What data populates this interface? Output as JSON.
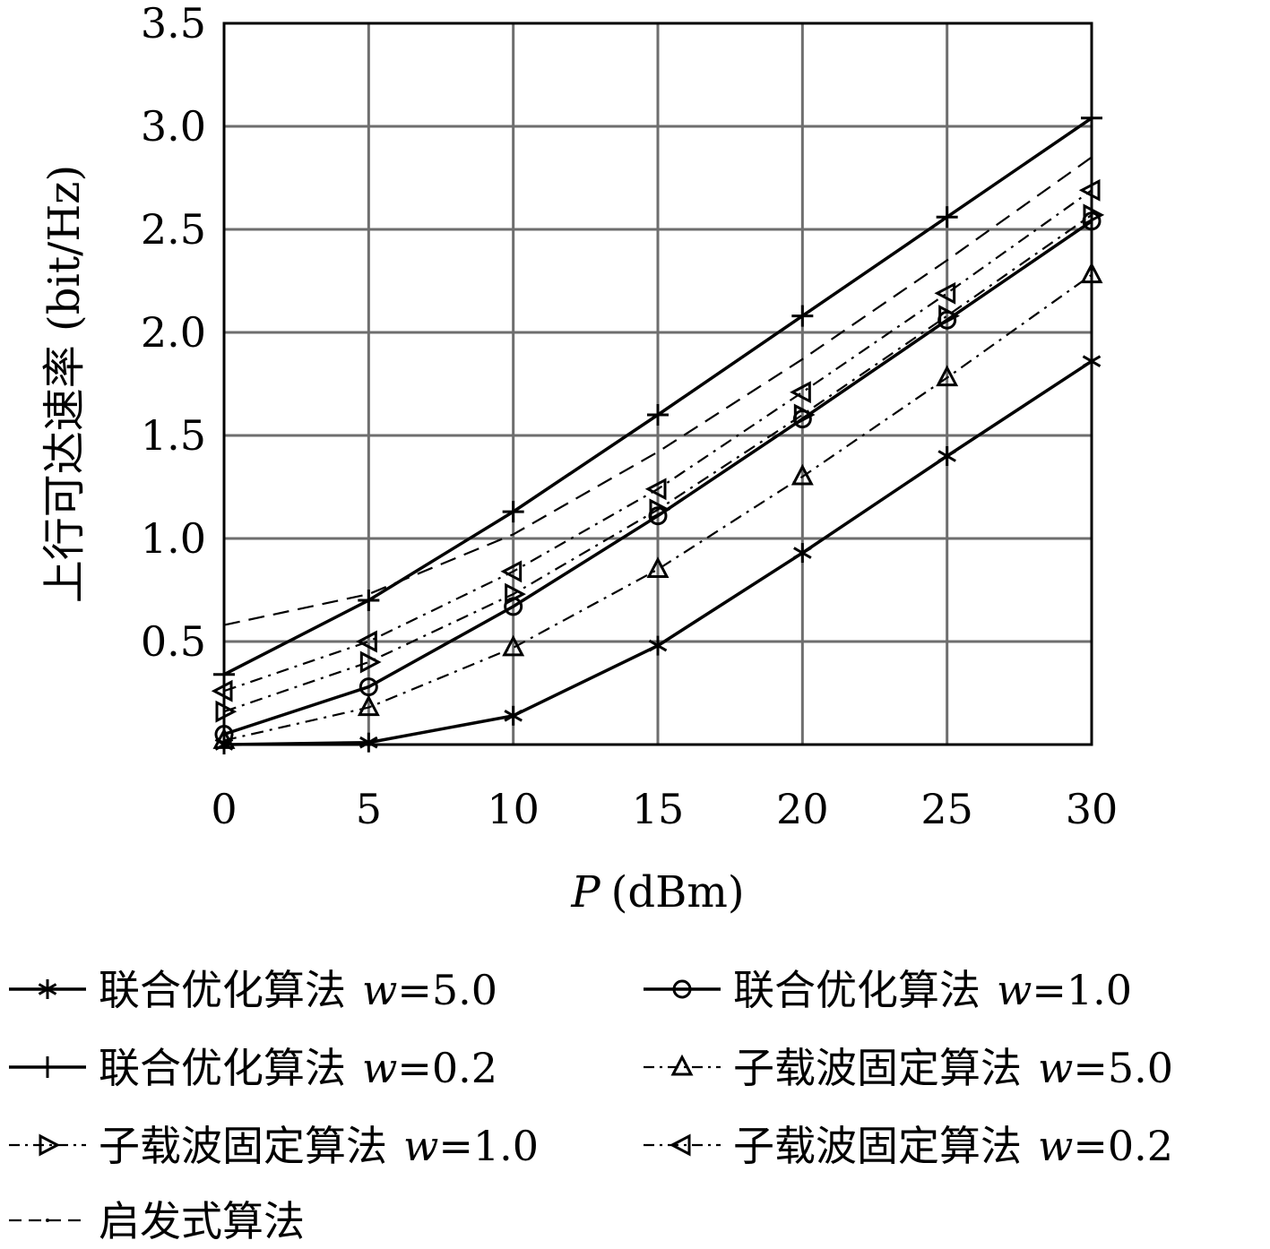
{
  "chart_data": {
    "type": "line",
    "title": "",
    "xlabel_var": "P",
    "xlabel_unit": "(dBm)",
    "ylabel": "上行可达速率 (bit/Hz)",
    "xlim": [
      0,
      30
    ],
    "ylim": [
      0,
      3.5
    ],
    "x_ticks": [
      "0",
      "5",
      "10",
      "15",
      "20",
      "25",
      "30"
    ],
    "y_ticks": [
      "0.5",
      "1.0",
      "1.5",
      "2.0",
      "2.5",
      "3.0",
      "3.5"
    ],
    "grid": true,
    "legend_position": "bottom",
    "x": [
      0,
      5,
      10,
      15,
      20,
      25,
      30
    ],
    "series": [
      {
        "name_text": "联合优化算法",
        "name_w": "w",
        "name_val": "=5.0",
        "style": "solid",
        "marker": "asterisk",
        "values": [
          0.0,
          0.01,
          0.14,
          0.48,
          0.93,
          1.4,
          1.86
        ]
      },
      {
        "name_text": "联合优化算法",
        "name_w": "w",
        "name_val": "=1.0",
        "style": "solid",
        "marker": "circle",
        "values": [
          0.05,
          0.28,
          0.67,
          1.11,
          1.58,
          2.06,
          2.54
        ]
      },
      {
        "name_text": "联合优化算法",
        "name_w": "w",
        "name_val": "=0.2",
        "style": "solid",
        "marker": "plus",
        "values": [
          0.34,
          0.7,
          1.13,
          1.6,
          2.08,
          2.56,
          3.04
        ]
      },
      {
        "name_text": "子载波固定算法",
        "name_w": "w",
        "name_val": "=5.0",
        "style": "dashdot",
        "marker": "triangle-up",
        "values": [
          0.02,
          0.18,
          0.47,
          0.85,
          1.3,
          1.78,
          2.28
        ]
      },
      {
        "name_text": "子载波固定算法",
        "name_w": "w",
        "name_val": "=1.0",
        "style": "dashdot",
        "marker": "triangle-right",
        "values": [
          0.16,
          0.4,
          0.73,
          1.14,
          1.6,
          2.08,
          2.57
        ]
      },
      {
        "name_text": "子载波固定算法",
        "name_w": "w",
        "name_val": "=0.2",
        "style": "dashdot",
        "marker": "triangle-left",
        "values": [
          0.26,
          0.5,
          0.84,
          1.24,
          1.71,
          2.19,
          2.69
        ]
      },
      {
        "name_text": "启发式算法",
        "name_w": "",
        "name_val": "",
        "style": "dashed",
        "marker": "none",
        "values": [
          0.58,
          0.73,
          1.02,
          1.42,
          1.87,
          2.35,
          2.85
        ]
      }
    ]
  }
}
